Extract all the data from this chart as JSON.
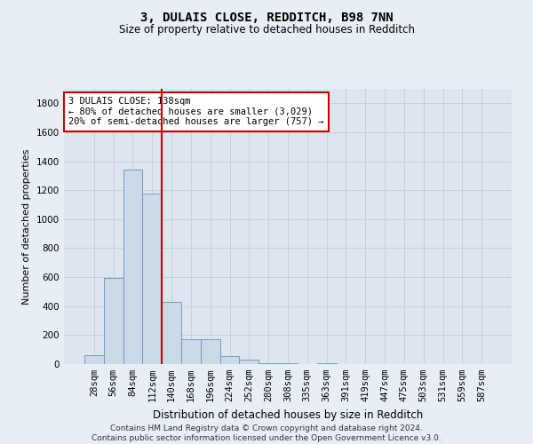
{
  "title1": "3, DULAIS CLOSE, REDDITCH, B98 7NN",
  "title2": "Size of property relative to detached houses in Redditch",
  "xlabel": "Distribution of detached houses by size in Redditch",
  "ylabel": "Number of detached properties",
  "footer": "Contains HM Land Registry data © Crown copyright and database right 2024.\nContains public sector information licensed under the Open Government Licence v3.0.",
  "bar_labels": [
    "28sqm",
    "56sqm",
    "84sqm",
    "112sqm",
    "140sqm",
    "168sqm",
    "196sqm",
    "224sqm",
    "252sqm",
    "280sqm",
    "308sqm",
    "335sqm",
    "363sqm",
    "391sqm",
    "419sqm",
    "447sqm",
    "475sqm",
    "503sqm",
    "531sqm",
    "559sqm",
    "587sqm"
  ],
  "bar_values": [
    60,
    595,
    1345,
    1175,
    430,
    170,
    170,
    55,
    30,
    5,
    5,
    0,
    5,
    0,
    0,
    0,
    0,
    0,
    0,
    0,
    0
  ],
  "bar_color": "#ccd9e8",
  "bar_edge_color": "#7799bb",
  "ylim": [
    0,
    1900
  ],
  "yticks": [
    0,
    200,
    400,
    600,
    800,
    1000,
    1200,
    1400,
    1600,
    1800
  ],
  "vline_x": 4.0,
  "vline_color": "#cc0000",
  "annotation_text": "3 DULAIS CLOSE: 138sqm\n← 80% of detached houses are smaller (3,029)\n20% of semi-detached houses are larger (757) →",
  "annotation_box_color": "#ffffff",
  "annotation_box_edge": "#cc0000",
  "bg_color": "#e8eef5",
  "plot_bg_color": "#dde6ef",
  "grid_color": "#c0ccd8",
  "title1_fontsize": 10,
  "title2_fontsize": 8.5,
  "xlabel_fontsize": 8.5,
  "ylabel_fontsize": 8,
  "tick_fontsize": 7.5,
  "annot_fontsize": 7.5,
  "footer_fontsize": 6.5
}
